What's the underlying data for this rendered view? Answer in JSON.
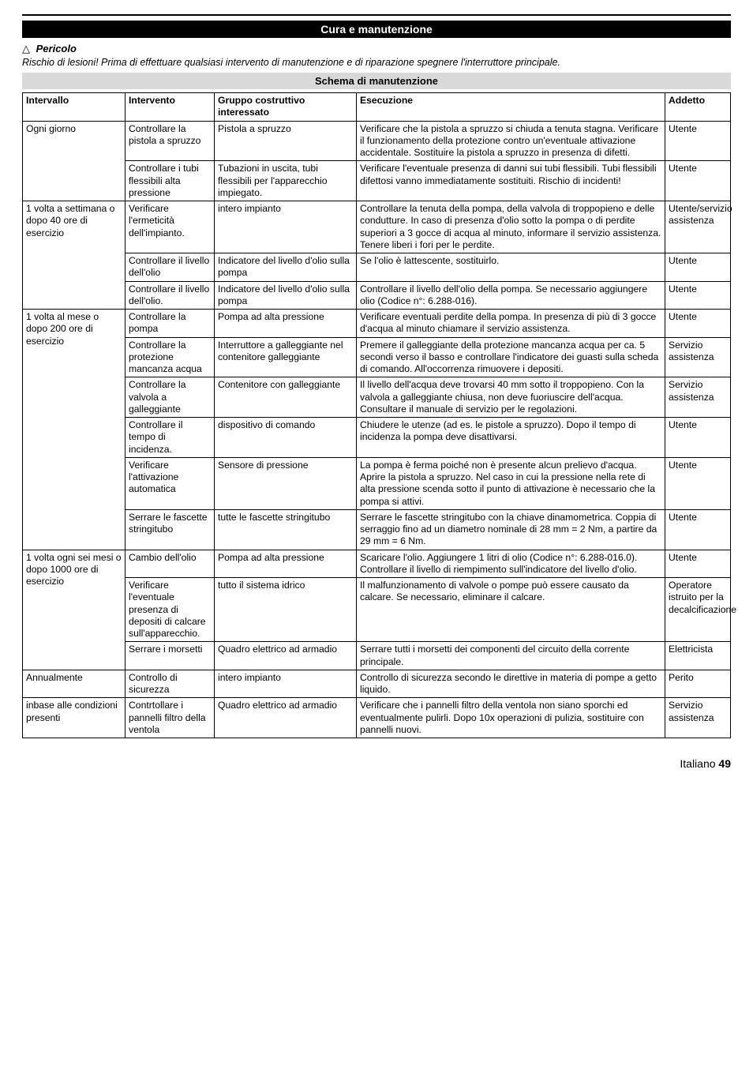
{
  "page": {
    "title_bar": "Cura e manutenzione",
    "pericolo_label": "Pericolo",
    "pericolo_triangle": "△",
    "rischio": "Rischio di lesioni! Prima di effettuare qualsiasi intervento di manutenzione e di riparazione spegnere l'interruttore principale.",
    "schema_bar": "Schema di manutenzione",
    "footer_lang": "Italiano",
    "footer_page": "49"
  },
  "table": {
    "headers": {
      "c1": "Intervallo",
      "c2": "Intervento",
      "c3": "Gruppo costruttivo interessato",
      "c4": "Esecuzione",
      "c5": "Addetto"
    },
    "groups": [
      {
        "intervallo": "Ogni giorno",
        "rows": [
          {
            "c2": "Controllare la pistola a spruzzo",
            "c3": "Pistola a spruzzo",
            "c4": "Verificare che la pistola a spruzzo si chiuda a tenuta stagna. Verificare il funzionamento della protezione contro un'eventuale attivazione accidentale. Sostituire la pistola a spruzzo in presenza di difetti.",
            "c5": "Utente"
          },
          {
            "c2": "Controllare i tubi flessibili alta pressione",
            "c3": "Tubazioni in uscita, tubi flessibili per l'apparecchio impiegato.",
            "c4": "Verificare l'eventuale presenza di danni sui tubi flessibili. Tubi flessibili difettosi vanno immediatamente sostituiti. Rischio di incidenti!",
            "c5": "Utente"
          }
        ]
      },
      {
        "intervallo": "1 volta a settimana o dopo 40 ore di esercizio",
        "rows": [
          {
            "c2": "Verificare l'ermeticità dell'impianto.",
            "c3": "intero impianto",
            "c4": "Controllare la tenuta della pompa, della valvola di troppopieno e delle condutture. In caso di presenza d'olio sotto la pompa o di perdite superiori a 3 gocce di acqua al minuto, informare il servizio assistenza. Tenere liberi i fori per le perdite.",
            "c5": "Utente/servizio assistenza"
          },
          {
            "c2": "Controllare il livello dell'olio",
            "c3": "Indicatore del livello d'olio sulla pompa",
            "c4": "Se l'olio è lattescente, sostituirlo.",
            "c5": "Utente"
          },
          {
            "c2": "Controllare il livello dell'olio.",
            "c3": "Indicatore del livello d'olio sulla pompa",
            "c4": "Controllare il livello dell'olio della pompa. Se necessario aggiungere olio (Codice n°: 6.288-016).",
            "c5": "Utente"
          }
        ]
      },
      {
        "intervallo": "1 volta al mese o dopo 200 ore di esercizio",
        "rows": [
          {
            "c2": "Controllare la pompa",
            "c3": "Pompa ad alta pressione",
            "c4": "Verificare eventuali perdite della pompa. In presenza di più di 3 gocce d'acqua al minuto chiamare il servizio assistenza.",
            "c5": "Utente"
          },
          {
            "c2": "Controllare la protezione mancanza acqua",
            "c3": "Interruttore a galleggiante nel contenitore galleggiante",
            "c4": "Premere il galleggiante della protezione mancanza acqua per ca. 5 secondi verso il basso e controllare l'indicatore dei guasti sulla scheda di comando. All'occorrenza rimuovere i depositi.",
            "c5": "Servizio assistenza"
          },
          {
            "c2": "Controllare la valvola a galleggiante",
            "c3": "Contenitore con galleggiante",
            "c4": "Il livello dell'acqua deve trovarsi 40 mm sotto il troppopieno. Con la valvola a galleggiante chiusa, non deve fuoriuscire dell'acqua. Consultare il manuale di servizio per le regolazioni.",
            "c5": "Servizio assistenza"
          },
          {
            "c2": "Controllare il tempo di incidenza.",
            "c3": "dispositivo di comando",
            "c4": "Chiudere le utenze (ad es. le pistole a spruzzo). Dopo il tempo di incidenza la pompa deve disattivarsi.",
            "c5": "Utente"
          },
          {
            "c2": "Verificare l'attivazione automatica",
            "c3": "Sensore di pressione",
            "c4": "La pompa è ferma poiché non è presente alcun prelievo d'acqua. Aprire la pistola a spruzzo. Nel caso in cui la pressione nella rete di alta pressione scenda sotto il punto di attivazione è necessario che la pompa si attivi.",
            "c5": "Utente"
          },
          {
            "c2": "Serrare le fascette stringitubo",
            "c3": "tutte le fascette stringitubo",
            "c4": "Serrare le fascette stringitubo con la chiave dinamometrica. Coppia di serraggio fino ad un diametro nominale di 28 mm = 2 Nm, a partire da 29 mm = 6 Nm.",
            "c5": "Utente"
          }
        ]
      },
      {
        "intervallo": "1 volta ogni sei mesi o dopo 1000 ore di esercizio",
        "rows": [
          {
            "c2": "Cambio dell'olio",
            "c3": "Pompa ad alta pressione",
            "c4": "Scaricare l'olio. Aggiungere 1 litri di olio (Codice n°: 6.288-016.0). Controllare il livello di riempimento sull'indicatore del livello d'olio.",
            "c5": "Utente"
          },
          {
            "c2": "Verificare l'eventuale presenza di depositi di calcare sull'apparecchio.",
            "c3": "tutto il sistema idrico",
            "c4": "Il malfunzionamento di valvole o pompe può essere causato da calcare. Se necessario, eliminare il calcare.",
            "c5": "Operatore istruito per la decalcificazione"
          },
          {
            "c2": "Serrare i morsetti",
            "c3": "Quadro elettrico ad armadio",
            "c4": "Serrare tutti i morsetti dei componenti del circuito della corrente principale.",
            "c5": "Elettricista"
          }
        ]
      },
      {
        "intervallo": "Annualmente",
        "rows": [
          {
            "c2": "Controllo di sicurezza",
            "c3": "intero impianto",
            "c4": "Controllo di sicurezza secondo le direttive in materia di pompe a getto liquido.",
            "c5": "Perito"
          }
        ]
      },
      {
        "intervallo": "inbase alle condizioni presenti",
        "rows": [
          {
            "c2": "Contrtollare i pannelli filtro della ventola",
            "c3": "Quadro elettrico ad armadio",
            "c4": "Verificare che i pannelli filtro della ventola non siano sporchi ed eventualmente pulirli. Dopo 10x operazioni di pulizia, sostituire con pannelli nuovi.",
            "c5": "Servizio assistenza"
          }
        ]
      }
    ]
  }
}
